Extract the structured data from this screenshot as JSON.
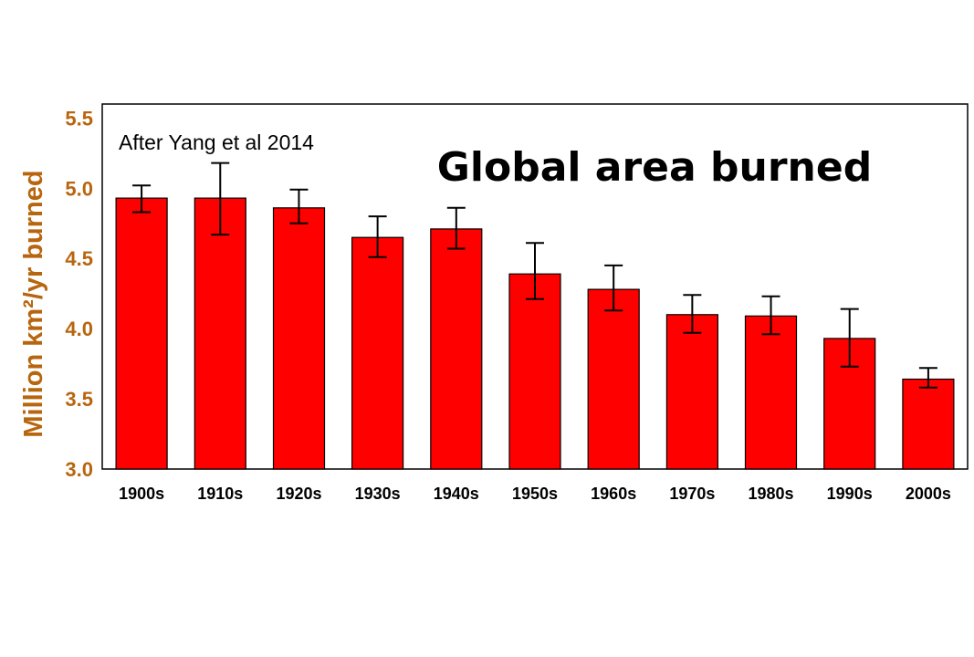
{
  "chart_data": {
    "type": "bar",
    "title": "Global area burned",
    "annotation": "After Yang et al 2014",
    "ylabel": "Million km²/yr burned",
    "xlabel": "",
    "ylim": [
      3.0,
      5.6
    ],
    "yticks": [
      "3.0",
      "3.5",
      "4.0",
      "4.5",
      "5.0",
      "5.5"
    ],
    "categories": [
      "1900s",
      "1910s",
      "1920s",
      "1930s",
      "1940s",
      "1950s",
      "1960s",
      "1970s",
      "1980s",
      "1990s",
      "2000s"
    ],
    "values": [
      4.93,
      4.93,
      4.86,
      4.65,
      4.71,
      4.39,
      4.28,
      4.1,
      4.09,
      3.93,
      3.64
    ],
    "error_low": [
      4.83,
      4.67,
      4.75,
      4.51,
      4.57,
      4.21,
      4.13,
      3.97,
      3.96,
      3.73,
      3.58
    ],
    "error_high": [
      5.02,
      5.18,
      4.99,
      4.8,
      4.86,
      4.61,
      4.45,
      4.24,
      4.23,
      4.14,
      3.72
    ],
    "grid": false,
    "colors": {
      "bar": "#ff0000",
      "bar_edge": "#000000",
      "error_bar": "#000000",
      "y_axis_text": "#b8650f"
    }
  }
}
